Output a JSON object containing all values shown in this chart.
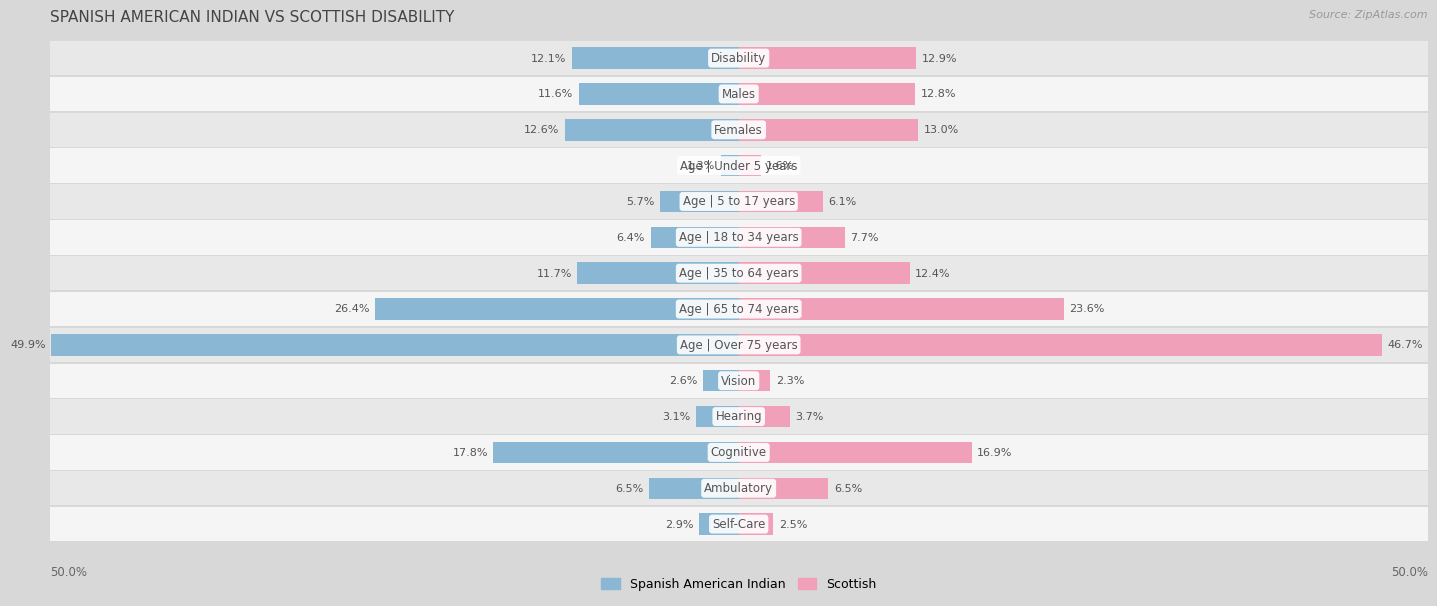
{
  "title": "SPANISH AMERICAN INDIAN VS SCOTTISH DISABILITY",
  "source": "Source: ZipAtlas.com",
  "categories": [
    "Disability",
    "Males",
    "Females",
    "Age | Under 5 years",
    "Age | 5 to 17 years",
    "Age | 18 to 34 years",
    "Age | 35 to 64 years",
    "Age | 65 to 74 years",
    "Age | Over 75 years",
    "Vision",
    "Hearing",
    "Cognitive",
    "Ambulatory",
    "Self-Care"
  ],
  "left_values": [
    12.1,
    11.6,
    12.6,
    1.3,
    5.7,
    6.4,
    11.7,
    26.4,
    49.9,
    2.6,
    3.1,
    17.8,
    6.5,
    2.9
  ],
  "right_values": [
    12.9,
    12.8,
    13.0,
    1.6,
    6.1,
    7.7,
    12.4,
    23.6,
    46.7,
    2.3,
    3.7,
    16.9,
    6.5,
    2.5
  ],
  "left_color": "#8ab8d4",
  "right_color": "#f0a0b8",
  "max_value": 50.0,
  "legend_left": "Spanish American Indian",
  "legend_right": "Scottish",
  "bg_color": "#d8d8d8",
  "row_color_even": "#f5f5f5",
  "row_color_odd": "#e8e8e8",
  "title_fontsize": 11,
  "label_fontsize": 8.5,
  "value_fontsize": 8,
  "bar_height": 0.6
}
